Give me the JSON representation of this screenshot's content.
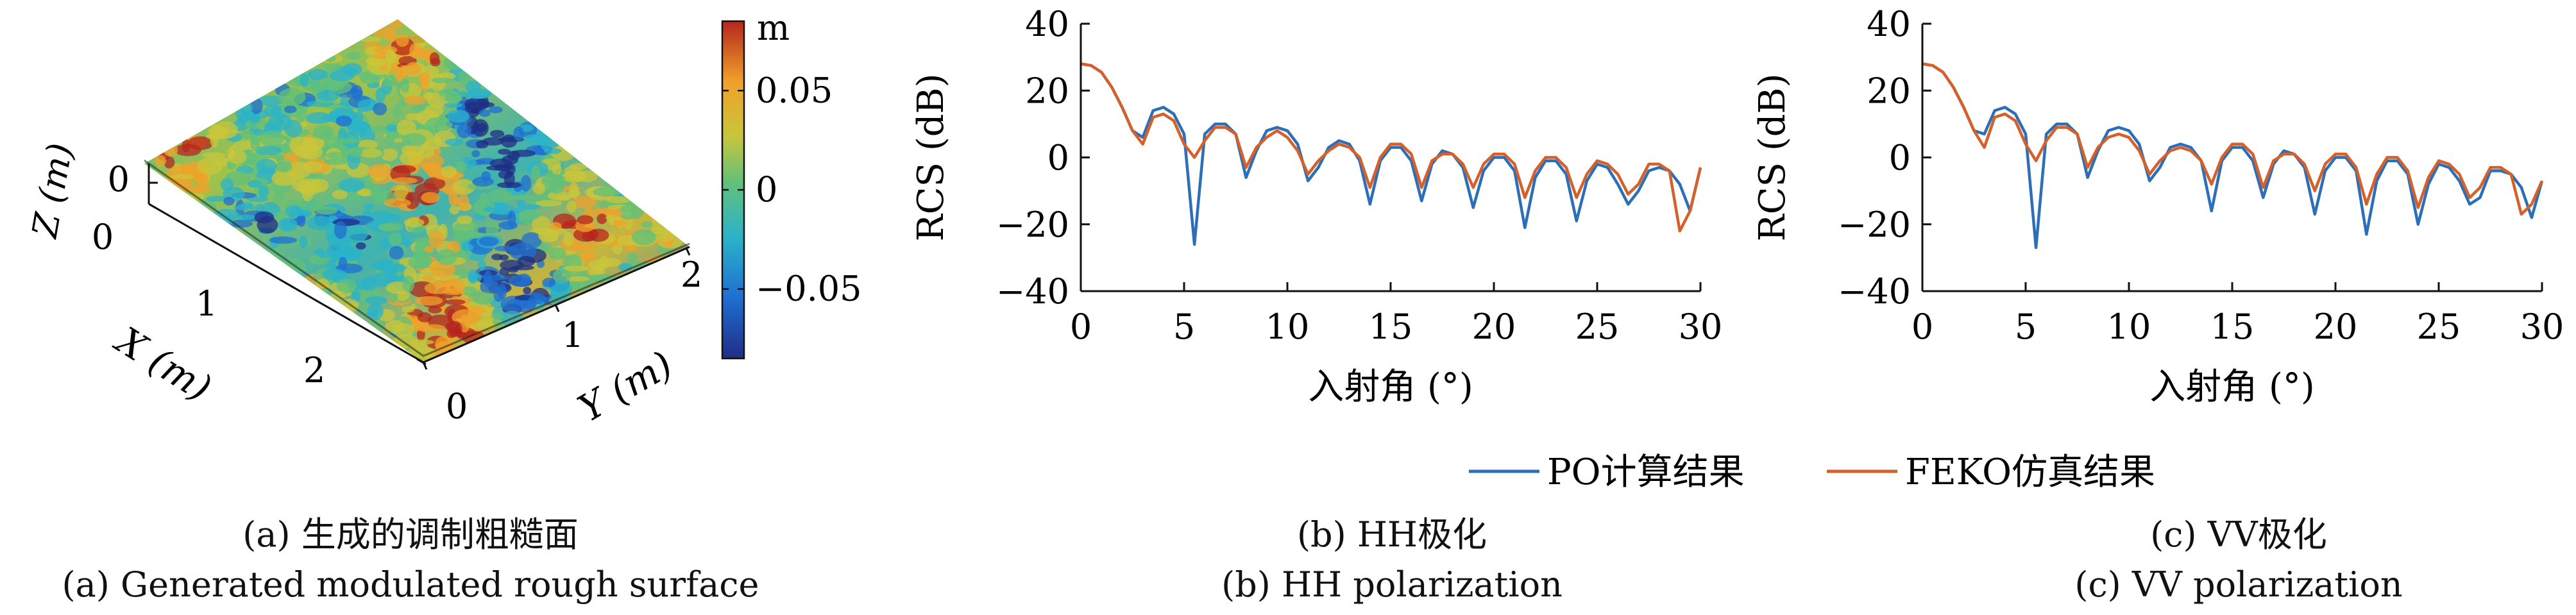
{
  "surface_panel": {
    "colorbar": {
      "unit": "m",
      "ticks": [
        "0.05",
        "0",
        "−0.05"
      ],
      "tick_values": [
        0.05,
        0,
        -0.05
      ],
      "range": [
        -0.085,
        0.085
      ]
    },
    "z_label": "Z (m)",
    "z_tick": "0",
    "x_label": "X (m)",
    "x_ticks": [
      "0",
      "1",
      "2"
    ],
    "y_label": "Y (m)",
    "y_ticks": [
      "0",
      "1",
      "2"
    ],
    "colormap": [
      "#1f2d86",
      "#1f6fd1",
      "#2bb3c9",
      "#62c07a",
      "#c9c53b",
      "#f0a12a",
      "#b5261e"
    ]
  },
  "captions": {
    "a_cn": "(a) 生成的调制粗糙面",
    "a_en": "(a) Generated modulated rough surface",
    "b_cn": "(b) HH极化",
    "b_en": "(b) HH polarization",
    "c_cn": "(c) VV极化",
    "c_en": "(c) VV polarization"
  },
  "legend": {
    "po": "PO计算结果",
    "feko": "FEKO仿真结果"
  },
  "colors": {
    "po": "#2c6fb8",
    "feko": "#d6602a",
    "axis": "#111111"
  },
  "chart_data": [
    {
      "type": "line",
      "xlabel": "入射角 (°)",
      "ylabel": "RCS (dB)",
      "xlim": [
        0,
        30
      ],
      "ylim": [
        -40,
        40
      ],
      "xticks": [
        0,
        5,
        10,
        15,
        20,
        25,
        30
      ],
      "yticks": [
        -40,
        -20,
        0,
        20,
        40
      ],
      "legend": "bottom-center",
      "x": [
        0,
        0.5,
        1,
        1.5,
        2,
        2.5,
        3,
        3.5,
        4,
        4.5,
        5,
        5.5,
        6,
        6.5,
        7,
        7.5,
        8,
        8.5,
        9,
        9.5,
        10,
        10.5,
        11,
        11.5,
        12,
        12.5,
        13,
        13.5,
        14,
        14.5,
        15,
        15.5,
        16,
        16.5,
        17,
        17.5,
        18,
        18.5,
        19,
        19.5,
        20,
        20.5,
        21,
        21.5,
        22,
        22.5,
        23,
        23.5,
        24,
        24.5,
        25,
        25.5,
        26,
        26.5,
        27,
        27.5,
        28,
        28.5,
        29,
        29.5,
        30
      ],
      "series": [
        {
          "name": "PO计算结果",
          "values": [
            28,
            27.5,
            25.5,
            21,
            15,
            8,
            6,
            14,
            15,
            13,
            7,
            -26,
            7,
            10,
            10,
            7,
            -6,
            2,
            8,
            9,
            8,
            4,
            -7,
            -3,
            3,
            5,
            4,
            -1,
            -14,
            -1,
            3,
            3,
            -1,
            -13,
            -2,
            2,
            1,
            -3,
            -15,
            -4,
            0,
            0,
            -4,
            -21,
            -6,
            -1,
            -1,
            -5,
            -19,
            -7,
            -2,
            -3,
            -8,
            -14,
            -10,
            -4,
            -3,
            -4,
            -8,
            -16,
            -3
          ]
        },
        {
          "name": "FEKO仿真结果",
          "values": [
            28,
            27.5,
            25.5,
            21,
            15,
            8,
            4,
            12,
            13,
            11,
            4,
            0,
            5,
            9,
            9,
            7,
            -3,
            3,
            6,
            8,
            6,
            2,
            -5,
            -1,
            2,
            4,
            3,
            0,
            -9,
            0,
            4,
            4,
            1,
            -9,
            -1,
            1,
            1,
            -2,
            -9,
            -2,
            1,
            1,
            -2,
            -12,
            -4,
            0,
            0,
            -3,
            -12,
            -5,
            -1,
            -2,
            -5,
            -11,
            -8,
            -2,
            -2,
            -4,
            -22,
            -16,
            -3
          ]
        }
      ]
    },
    {
      "type": "line",
      "xlabel": "入射角 (°)",
      "ylabel": "RCS (dB)",
      "xlim": [
        0,
        30
      ],
      "ylim": [
        -40,
        40
      ],
      "xticks": [
        0,
        5,
        10,
        15,
        20,
        25,
        30
      ],
      "yticks": [
        -40,
        -20,
        0,
        20,
        40
      ],
      "legend": "bottom-center",
      "x": [
        0,
        0.5,
        1,
        1.5,
        2,
        2.5,
        3,
        3.5,
        4,
        4.5,
        5,
        5.5,
        6,
        6.5,
        7,
        7.5,
        8,
        8.5,
        9,
        9.5,
        10,
        10.5,
        11,
        11.5,
        12,
        12.5,
        13,
        13.5,
        14,
        14.5,
        15,
        15.5,
        16,
        16.5,
        17,
        17.5,
        18,
        18.5,
        19,
        19.5,
        20,
        20.5,
        21,
        21.5,
        22,
        22.5,
        23,
        23.5,
        24,
        24.5,
        25,
        25.5,
        26,
        26.5,
        27,
        27.5,
        28,
        28.5,
        29,
        29.5,
        30
      ],
      "series": [
        {
          "name": "PO计算结果",
          "values": [
            28,
            27.5,
            25.5,
            21,
            15,
            8,
            7,
            14,
            15,
            13,
            7,
            -27,
            7,
            10,
            10,
            7,
            -6,
            2,
            8,
            9,
            8,
            4,
            -7,
            -3,
            3,
            4,
            3,
            -1,
            -16,
            -1,
            3,
            3,
            -1,
            -12,
            -2,
            2,
            1,
            -3,
            -17,
            -4,
            0,
            0,
            -4,
            -23,
            -7,
            -1,
            -1,
            -5,
            -20,
            -8,
            -2,
            -3,
            -7,
            -14,
            -12,
            -4,
            -4,
            -5,
            -9,
            -18,
            -7
          ]
        },
        {
          "name": "FEKO仿真结果",
          "values": [
            28,
            27.5,
            25.5,
            21,
            15,
            8,
            3,
            12,
            13,
            11,
            4,
            -1,
            5,
            9,
            9,
            7,
            -3,
            3,
            6,
            7,
            6,
            2,
            -5,
            -1,
            2,
            3,
            2,
            -1,
            -8,
            0,
            4,
            4,
            1,
            -9,
            -1,
            1,
            1,
            -2,
            -10,
            -2,
            1,
            1,
            -3,
            -14,
            -5,
            0,
            0,
            -4,
            -15,
            -6,
            -1,
            -2,
            -5,
            -12,
            -9,
            -3,
            -3,
            -5,
            -17,
            -14,
            -7
          ]
        }
      ]
    }
  ]
}
